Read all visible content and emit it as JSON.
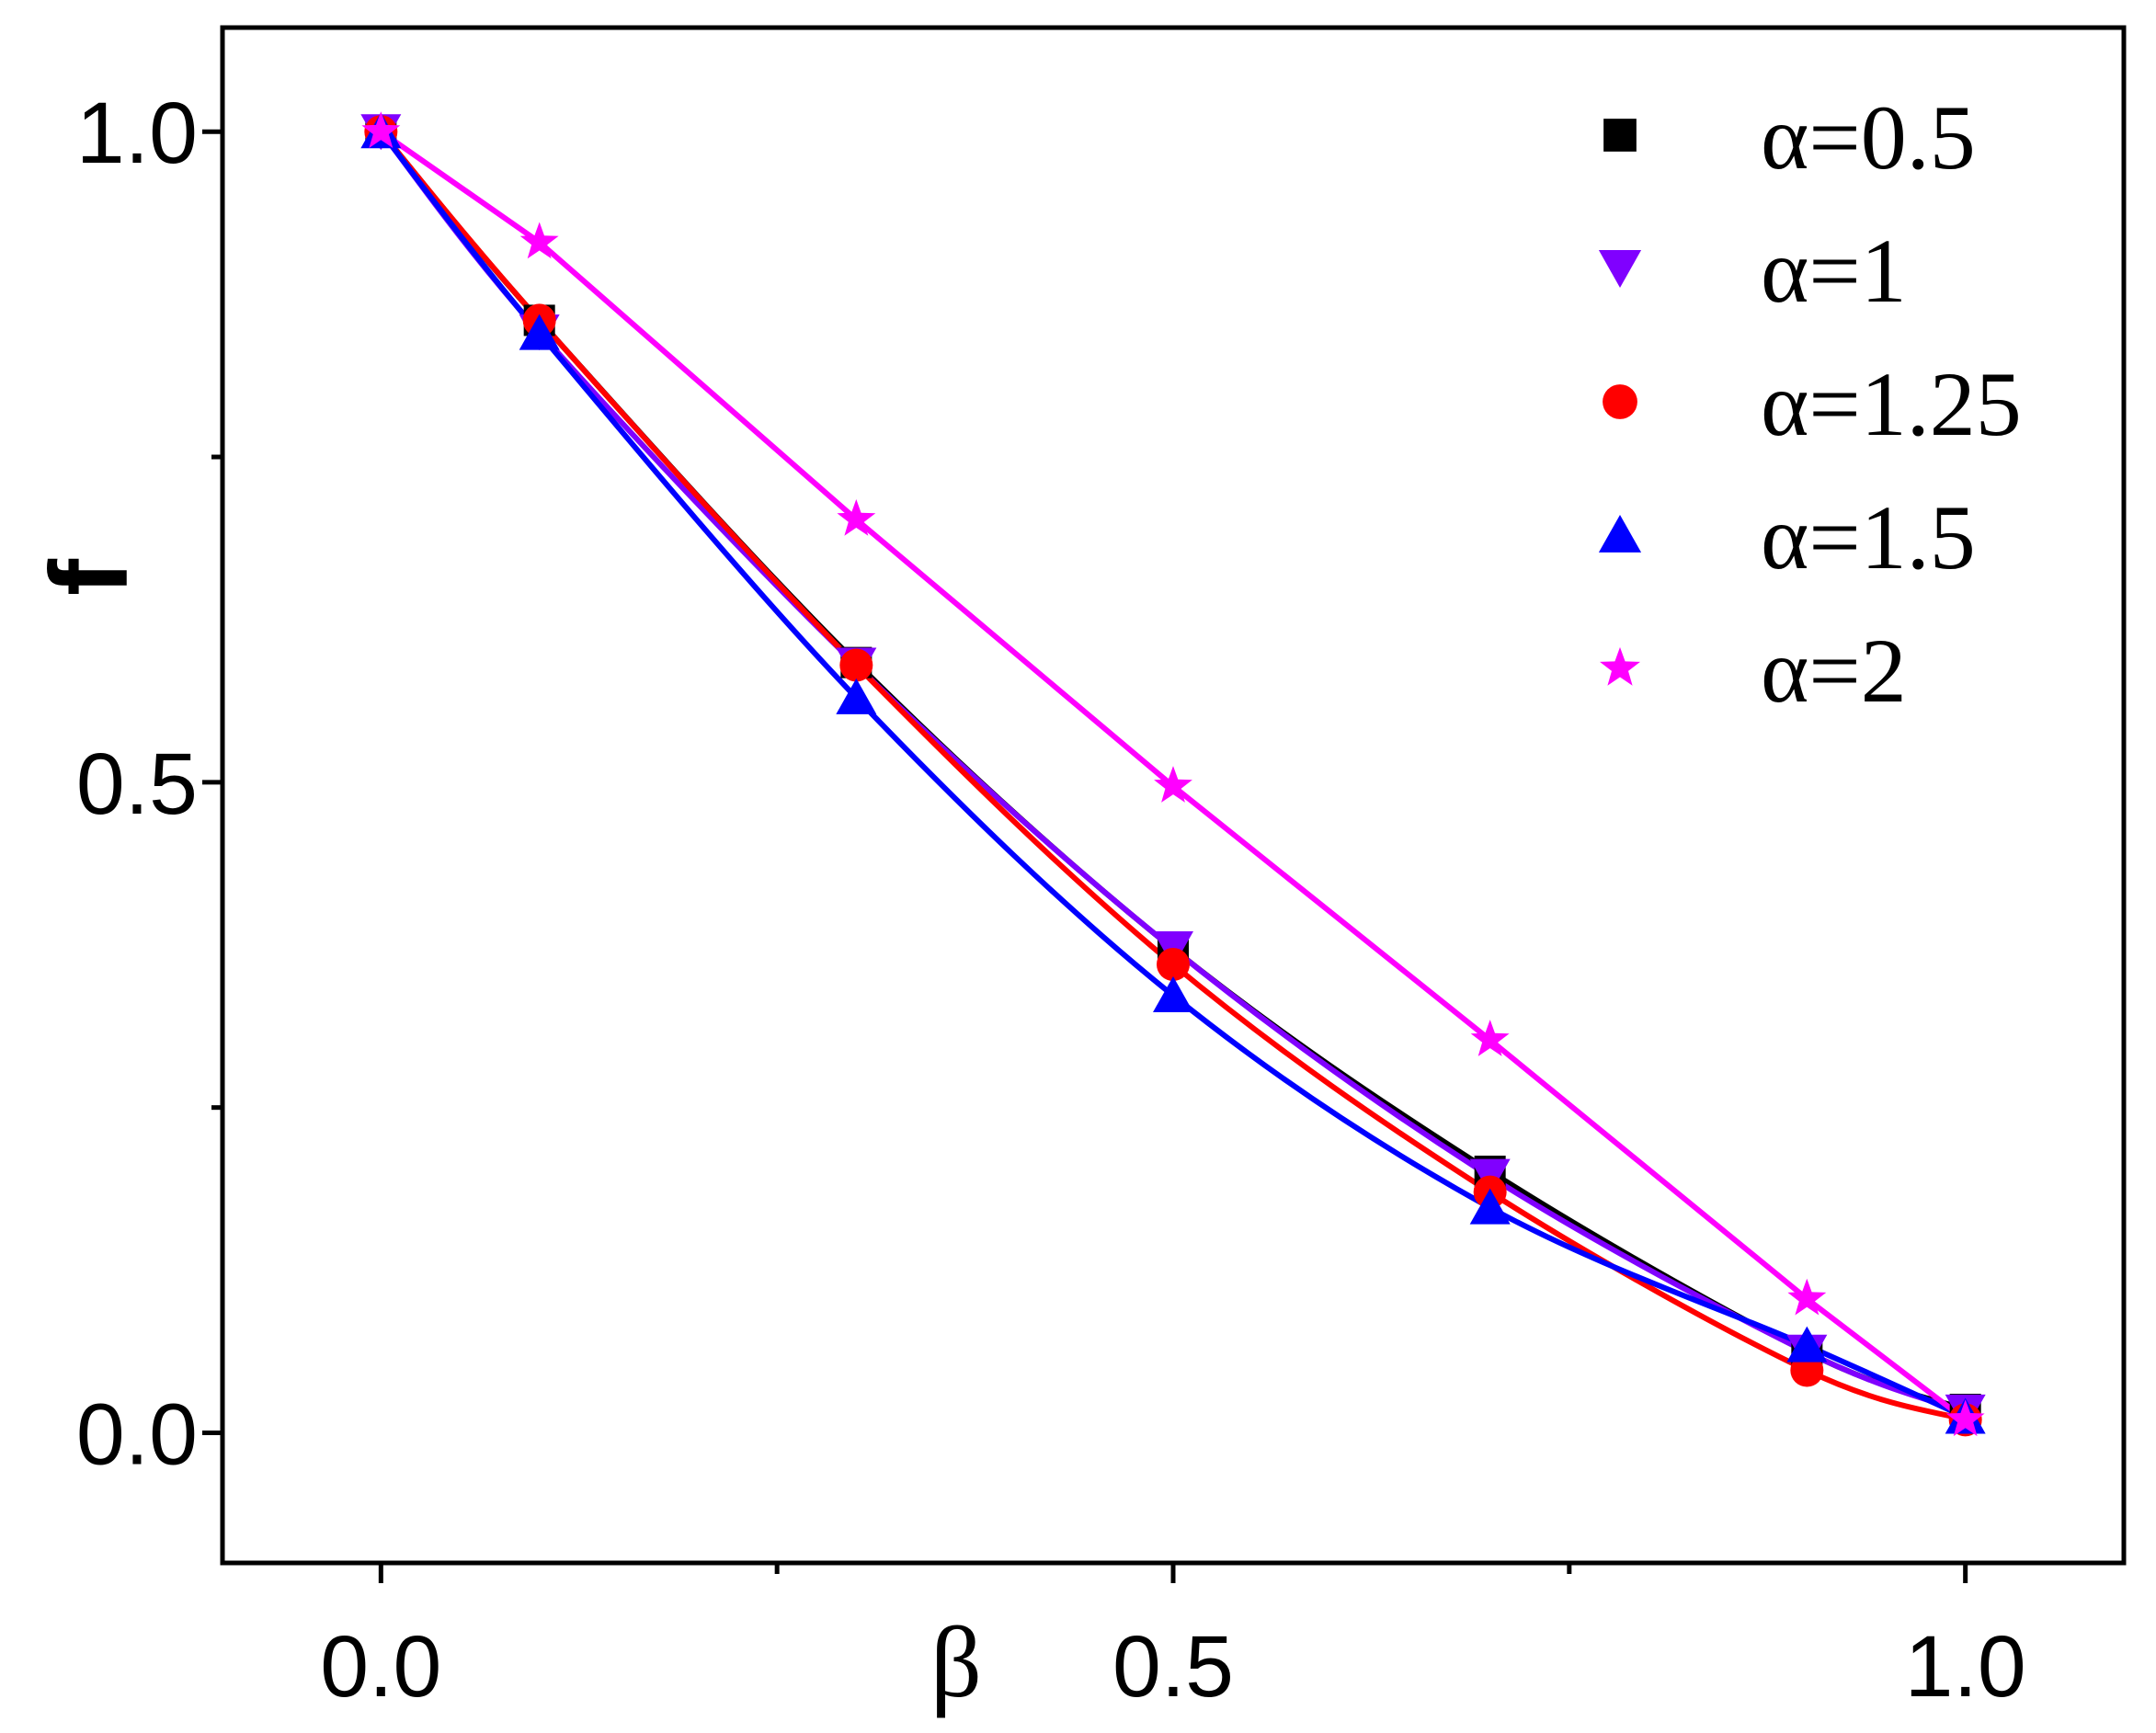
{
  "chart_data": {
    "type": "line",
    "xlabel": "β",
    "ylabel": "f",
    "xlim": [
      -0.1,
      1.1
    ],
    "ylim": [
      -0.1,
      1.08
    ],
    "x_ticks": [
      0.0,
      0.5,
      1.0
    ],
    "x_tick_labels": [
      "0.0",
      "0.5",
      "1.0"
    ],
    "x_minor_ticks": [
      0.25,
      0.75
    ],
    "y_ticks": [
      0.0,
      0.5,
      1.0
    ],
    "y_tick_labels": [
      "0.0",
      "0.5",
      "1.0"
    ],
    "y_minor_ticks": [
      0.25,
      0.75
    ],
    "grid": false,
    "legend_position": "top-right",
    "x": [
      0.0,
      0.1,
      0.3,
      0.5,
      0.7,
      0.9,
      1.0
    ],
    "series": [
      {
        "name": "α=0.5",
        "color": "#000000",
        "marker": "square",
        "values": [
          1.0,
          0.855,
          0.592,
          0.372,
          0.201,
          0.062,
          0.018
        ]
      },
      {
        "name": "α=1",
        "color": "#8000ff",
        "marker": "triangle-down",
        "values": [
          1.0,
          0.846,
          0.59,
          0.372,
          0.197,
          0.062,
          0.016
        ]
      },
      {
        "name": "α=1.25",
        "color": "#ff0000",
        "marker": "circle",
        "values": [
          1.0,
          0.855,
          0.59,
          0.36,
          0.185,
          0.048,
          0.01
        ]
      },
      {
        "name": "α=1.5",
        "color": "#0000ff",
        "marker": "triangle-up",
        "values": [
          1.0,
          0.845,
          0.565,
          0.336,
          0.173,
          0.067,
          0.012
        ]
      },
      {
        "name": "α=2",
        "color": "#ff00ff",
        "marker": "star",
        "values": [
          1.0,
          0.915,
          0.702,
          0.497,
          0.302,
          0.103,
          0.01
        ]
      }
    ]
  }
}
